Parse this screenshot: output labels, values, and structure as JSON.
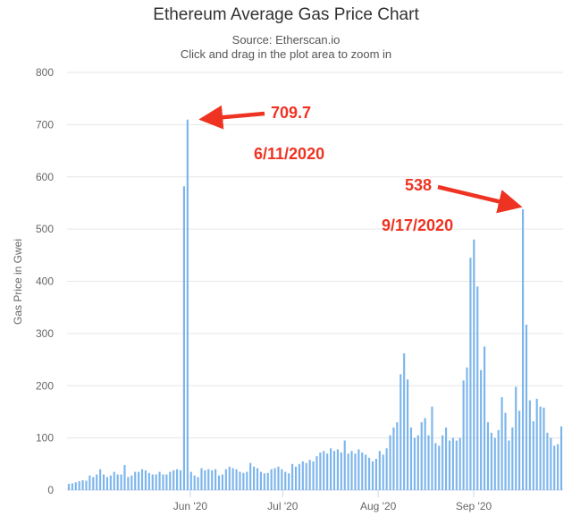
{
  "chart_data": {
    "type": "bar",
    "title": "Ethereum Average Gas Price Chart",
    "subtitle": [
      "Source: Etherscan.io",
      "Click and drag in the plot area to zoom in"
    ],
    "ylabel": "Gas Price in Gwei",
    "ylim": [
      0,
      800
    ],
    "yticks": [
      0,
      100,
      200,
      300,
      400,
      500,
      600,
      700,
      800
    ],
    "xticks": [
      {
        "label": "Jun '20",
        "date": "2020-06-01"
      },
      {
        "label": "Jul '20",
        "date": "2020-07-01"
      },
      {
        "label": "Aug '20",
        "date": "2020-08-01"
      },
      {
        "label": "Sep '20",
        "date": "2020-09-01"
      }
    ],
    "x_start": "2020-04-22",
    "x_end": "2020-09-30",
    "grid": true,
    "bar_color": "#7cb5ec",
    "values": [
      12,
      13,
      15,
      17,
      19,
      18,
      28,
      25,
      30,
      40,
      30,
      25,
      28,
      35,
      30,
      30,
      48,
      25,
      28,
      35,
      35,
      40,
      38,
      33,
      30,
      30,
      35,
      30,
      30,
      35,
      38,
      40,
      38,
      582,
      709.7,
      35,
      28,
      25,
      42,
      38,
      40,
      38,
      40,
      28,
      30,
      40,
      45,
      42,
      40,
      35,
      33,
      35,
      52,
      45,
      42,
      35,
      32,
      33,
      40,
      42,
      45,
      40,
      35,
      32,
      50,
      45,
      50,
      55,
      52,
      58,
      55,
      65,
      72,
      75,
      70,
      80,
      75,
      78,
      72,
      95,
      70,
      75,
      70,
      78,
      72,
      68,
      62,
      55,
      60,
      75,
      68,
      80,
      105,
      120,
      130,
      222,
      262,
      212,
      120,
      100,
      105,
      130,
      138,
      105,
      160,
      90,
      85,
      105,
      120,
      95,
      100,
      95,
      100,
      210,
      235,
      445,
      480,
      390,
      230,
      275,
      130,
      110,
      100,
      115,
      178,
      148,
      95,
      120,
      198,
      152,
      538,
      317,
      172,
      132,
      175,
      160,
      158,
      110,
      100,
      85,
      88,
      122
    ],
    "annotations": [
      {
        "value": "709.7",
        "date": "6/11/2020",
        "color": "#ee3322"
      },
      {
        "value": "538",
        "date": "9/17/2020",
        "color": "#ee3322"
      }
    ]
  }
}
